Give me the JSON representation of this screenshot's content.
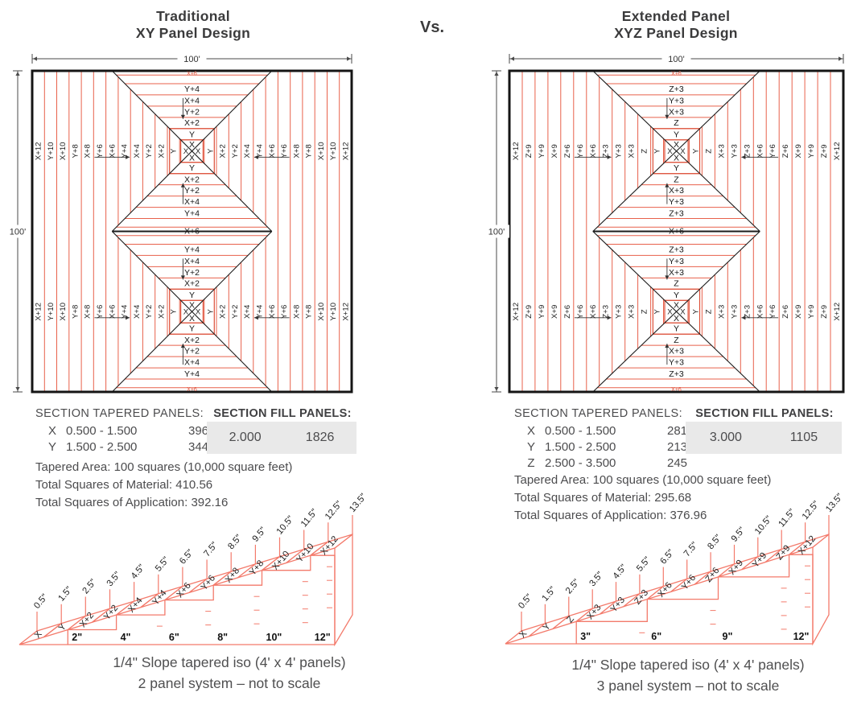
{
  "header": {
    "left_title": [
      "Traditional",
      "XY Panel Design"
    ],
    "vs_label": "Vs.",
    "right_title": [
      "Extended Panel",
      "XYZ Panel Design"
    ]
  },
  "colors": {
    "panel_line_red": "#e8614b",
    "ring_red": "#dc4f38",
    "iso_red": "#f37a6b",
    "black": "#1c1c1c",
    "text_gray": "#4c4c4e",
    "fill_box_bg": "#e9e9e9",
    "dim_gray": "#4a4a4a"
  },
  "left_panel": {
    "name": "Traditional XY Panel Design",
    "width_dim": "100'",
    "height_dim": "100'",
    "strip_labels": [
      "X+12",
      "Y+10",
      "X+10",
      "Y+8",
      "X+8",
      "Y+6",
      "X+6",
      "Y+4",
      "X+4",
      "Y+2",
      "X+2",
      "Y",
      "X"
    ],
    "ring_labels": [
      "X",
      "Y",
      "X+2",
      "Y+2",
      "X+4",
      "Y+4"
    ],
    "edge_label": "X+6",
    "center_label": "X+6"
  },
  "right_panel": {
    "name": "Extended Panel XYZ Panel Design",
    "width_dim": "100'",
    "height_dim": "100'",
    "strip_labels": [
      "X+12",
      "Z+9",
      "Y+9",
      "X+9",
      "Z+6",
      "Y+6",
      "X+6",
      "Z+3",
      "Y+3",
      "X+3",
      "Z",
      "Y",
      "X"
    ],
    "ring_labels": [
      "X",
      "Y",
      "Z",
      "X+3",
      "Y+3",
      "Z+3"
    ],
    "edge_label": "X+6",
    "center_label": "X+6"
  },
  "left_table": {
    "tapered_header": "SECTION TAPERED PANELS:",
    "rows": [
      {
        "letter": "X",
        "range": "0.500 - 1.500",
        "count": "396"
      },
      {
        "letter": "Y",
        "range": "1.500 - 2.500",
        "count": "344"
      }
    ],
    "fill_header": "SECTION FILL PANELS:",
    "fill_value": "2.000",
    "fill_count": "1826",
    "notes": [
      "Tapered Area: 100 squares (10,000 square feet)",
      "Total Squares of Material: 410.56",
      "Total Squares of Application: 392.16"
    ]
  },
  "right_table": {
    "tapered_header": "SECTION TAPERED PANELS:",
    "rows": [
      {
        "letter": "X",
        "range": "0.500 - 1.500",
        "count": "281"
      },
      {
        "letter": "Y",
        "range": "1.500 - 2.500",
        "count": "213"
      },
      {
        "letter": "Z",
        "range": "2.500 - 3.500",
        "count": "245"
      }
    ],
    "fill_header": "SECTION FILL PANELS:",
    "fill_value": "3.000",
    "fill_count": "1105",
    "notes": [
      "Tapered Area: 100 squares (10,000 square feet)",
      "Total Squares of Material: 295.68",
      "Total Squares of Application: 376.96"
    ]
  },
  "left_iso": {
    "tick_labels": [
      "0.5\"",
      "1.5\"",
      "2.5\"",
      "3.5\"",
      "4.5\"",
      "5.5\"",
      "6.5\"",
      "7.5\"",
      "8.5\"",
      "9.5\"",
      "10.5\"",
      "11.5\"",
      "12.5\"",
      "13.5\""
    ],
    "panel_labels": [
      "X",
      "Y",
      "X+2",
      "Y+2",
      "X+4",
      "Y+4",
      "X+6",
      "Y+6",
      "X+8",
      "Y+8",
      "X+10",
      "Y+10",
      "X+12"
    ],
    "step_labels": [
      "2\"",
      "4\"",
      "6\"",
      "8\"",
      "10\"",
      "12\""
    ],
    "caption": [
      "1/4\" Slope tapered iso (4' x 4' panels)",
      "2 panel system – not to scale"
    ]
  },
  "right_iso": {
    "tick_labels": [
      "0.5\"",
      "1.5\"",
      "2.5\"",
      "3.5\"",
      "4.5\"",
      "5.5\"",
      "6.5\"",
      "7.5\"",
      "8.5\"",
      "9.5\"",
      "10.5\"",
      "11.5\"",
      "12.5\"",
      "13.5\""
    ],
    "panel_labels": [
      "X",
      "Y",
      "Z",
      "X+3",
      "Y+3",
      "Z+3",
      "X+6",
      "Y+6",
      "Z+6",
      "X+9",
      "Y+9",
      "Z+9",
      "X+12"
    ],
    "step_labels": [
      "3\"",
      "6\"",
      "9\"",
      "12\""
    ],
    "caption": [
      "1/4\" Slope tapered iso (4' x 4' panels)",
      "3 panel system – not to scale"
    ]
  }
}
